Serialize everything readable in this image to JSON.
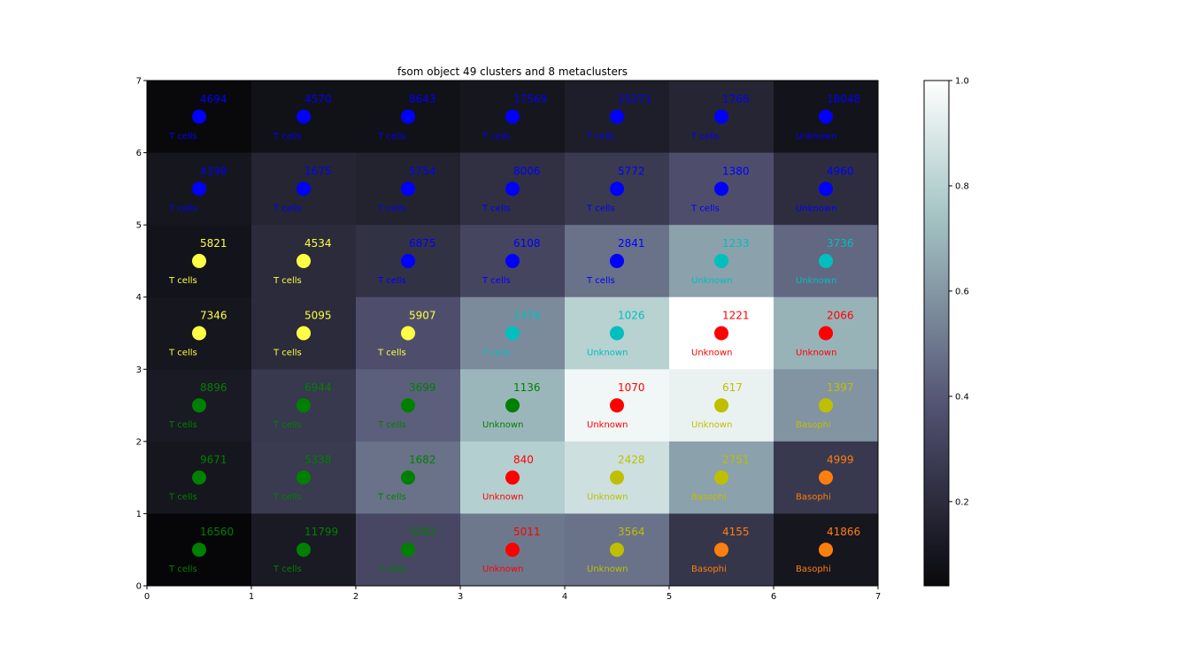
{
  "chart_data": {
    "type": "heatmap",
    "title": "fsom object 49 clusters and 8 metaclusters",
    "xlim": [
      0,
      7
    ],
    "ylim": [
      0,
      7
    ],
    "x_ticks": [
      "0",
      "1",
      "2",
      "3",
      "4",
      "5",
      "6",
      "7"
    ],
    "y_ticks": [
      "0",
      "1",
      "2",
      "3",
      "4",
      "5",
      "6",
      "7"
    ],
    "colorbar": {
      "range": [
        0.04,
        1.0
      ],
      "ticks": [
        "0.2",
        "0.4",
        "0.6",
        "0.8",
        "1.0"
      ],
      "tick_values": [
        0.2,
        0.4,
        0.6,
        0.8,
        1.0
      ]
    },
    "palette": {
      "blue": "#0000ff",
      "yellow": "#ffff44",
      "cyan": "#00bfbf",
      "red": "#ff0000",
      "green": "#008000",
      "olive": "#bfbf00",
      "orange": "#ff7f0e"
    },
    "rows": [
      {
        "y": 6,
        "cells": [
          {
            "count": "4694",
            "label": "T cells",
            "color": "blue",
            "value": 0.04
          },
          {
            "count": "4570",
            "label": "T cells",
            "color": "blue",
            "value": 0.08
          },
          {
            "count": "8643",
            "label": "T cells",
            "color": "blue",
            "value": 0.08
          },
          {
            "count": "17569",
            "label": "T cells",
            "color": "blue",
            "value": 0.1
          },
          {
            "count": "15371",
            "label": "T cells",
            "color": "blue",
            "value": 0.14
          },
          {
            "count": "1766",
            "label": "T cells",
            "color": "blue",
            "value": 0.17
          },
          {
            "count": "18048",
            "label": "Unknown",
            "color": "blue",
            "value": 0.09
          }
        ]
      },
      {
        "y": 5,
        "cells": [
          {
            "count": "4198",
            "label": "T cells",
            "color": "blue",
            "value": 0.1
          },
          {
            "count": "1675",
            "label": "T cells",
            "color": "blue",
            "value": 0.17
          },
          {
            "count": "5754",
            "label": "T cells",
            "color": "blue",
            "value": 0.16
          },
          {
            "count": "8006",
            "label": "T cells",
            "color": "blue",
            "value": 0.22
          },
          {
            "count": "5772",
            "label": "T cells",
            "color": "blue",
            "value": 0.27
          },
          {
            "count": "1380",
            "label": "T cells",
            "color": "blue",
            "value": 0.36
          },
          {
            "count": "4960",
            "label": "Unknown",
            "color": "blue",
            "value": 0.21
          }
        ]
      },
      {
        "y": 4,
        "cells": [
          {
            "count": "5821",
            "label": "T cells",
            "color": "yellow",
            "value": 0.09
          },
          {
            "count": "4534",
            "label": "T cells",
            "color": "yellow",
            "value": 0.2
          },
          {
            "count": "6875",
            "label": "T cells",
            "color": "blue",
            "value": 0.23
          },
          {
            "count": "6108",
            "label": "T cells",
            "color": "blue",
            "value": 0.32
          },
          {
            "count": "2841",
            "label": "T cells",
            "color": "blue",
            "value": 0.48
          },
          {
            "count": "1233",
            "label": "Unknown",
            "color": "cyan",
            "value": 0.63
          },
          {
            "count": "3736",
            "label": "Unknown",
            "color": "cyan",
            "value": 0.45
          }
        ]
      },
      {
        "y": 3,
        "cells": [
          {
            "count": "7346",
            "label": "T cells",
            "color": "yellow",
            "value": 0.1
          },
          {
            "count": "5095",
            "label": "T cells",
            "color": "yellow",
            "value": 0.2
          },
          {
            "count": "5907",
            "label": "T cells",
            "color": "yellow",
            "value": 0.36
          },
          {
            "count": "1476",
            "label": "T cells",
            "color": "cyan",
            "value": 0.56
          },
          {
            "count": "1026",
            "label": "Unknown",
            "color": "cyan",
            "value": 0.8
          },
          {
            "count": "1221",
            "label": "Unknown",
            "color": "red",
            "value": 1.0
          },
          {
            "count": "2066",
            "label": "Unknown",
            "color": "red",
            "value": 0.69
          }
        ]
      },
      {
        "y": 2,
        "cells": [
          {
            "count": "8896",
            "label": "T cells",
            "color": "green",
            "value": 0.12
          },
          {
            "count": "6944",
            "label": "T cells",
            "color": "green",
            "value": 0.26
          },
          {
            "count": "3699",
            "label": "T cells",
            "color": "green",
            "value": 0.42
          },
          {
            "count": "1136",
            "label": "Unknown",
            "color": "green",
            "value": 0.7
          },
          {
            "count": "1070",
            "label": "Unknown",
            "color": "red",
            "value": 0.96
          },
          {
            "count": "617",
            "label": "Unknown",
            "color": "olive",
            "value": 0.94
          },
          {
            "count": "1397",
            "label": "Basophi",
            "color": "olive",
            "value": 0.59
          }
        ]
      },
      {
        "y": 1,
        "cells": [
          {
            "count": "9671",
            "label": "T cells",
            "color": "green",
            "value": 0.1
          },
          {
            "count": "5338",
            "label": "T cells",
            "color": "green",
            "value": 0.27
          },
          {
            "count": "1682",
            "label": "T cells",
            "color": "green",
            "value": 0.48
          },
          {
            "count": "840",
            "label": "Unknown",
            "color": "red",
            "value": 0.79
          },
          {
            "count": "2428",
            "label": "Unknown",
            "color": "olive",
            "value": 0.86
          },
          {
            "count": "2751",
            "label": "Basophi",
            "color": "olive",
            "value": 0.63
          },
          {
            "count": "4999",
            "label": "Basophi",
            "color": "orange",
            "value": 0.26
          }
        ]
      },
      {
        "y": 0,
        "cells": [
          {
            "count": "16560",
            "label": "T cells",
            "color": "green",
            "value": 0.03
          },
          {
            "count": "11799",
            "label": "T cells",
            "color": "green",
            "value": 0.12
          },
          {
            "count": "3283",
            "label": "T cells",
            "color": "green",
            "value": 0.33
          },
          {
            "count": "5011",
            "label": "Unknown",
            "color": "red",
            "value": 0.5
          },
          {
            "count": "3564",
            "label": "Unknown",
            "color": "olive",
            "value": 0.48
          },
          {
            "count": "4155",
            "label": "Basophi",
            "color": "orange",
            "value": 0.25
          },
          {
            "count": "41866",
            "label": "Basophi",
            "color": "orange",
            "value": 0.1
          }
        ]
      }
    ]
  }
}
